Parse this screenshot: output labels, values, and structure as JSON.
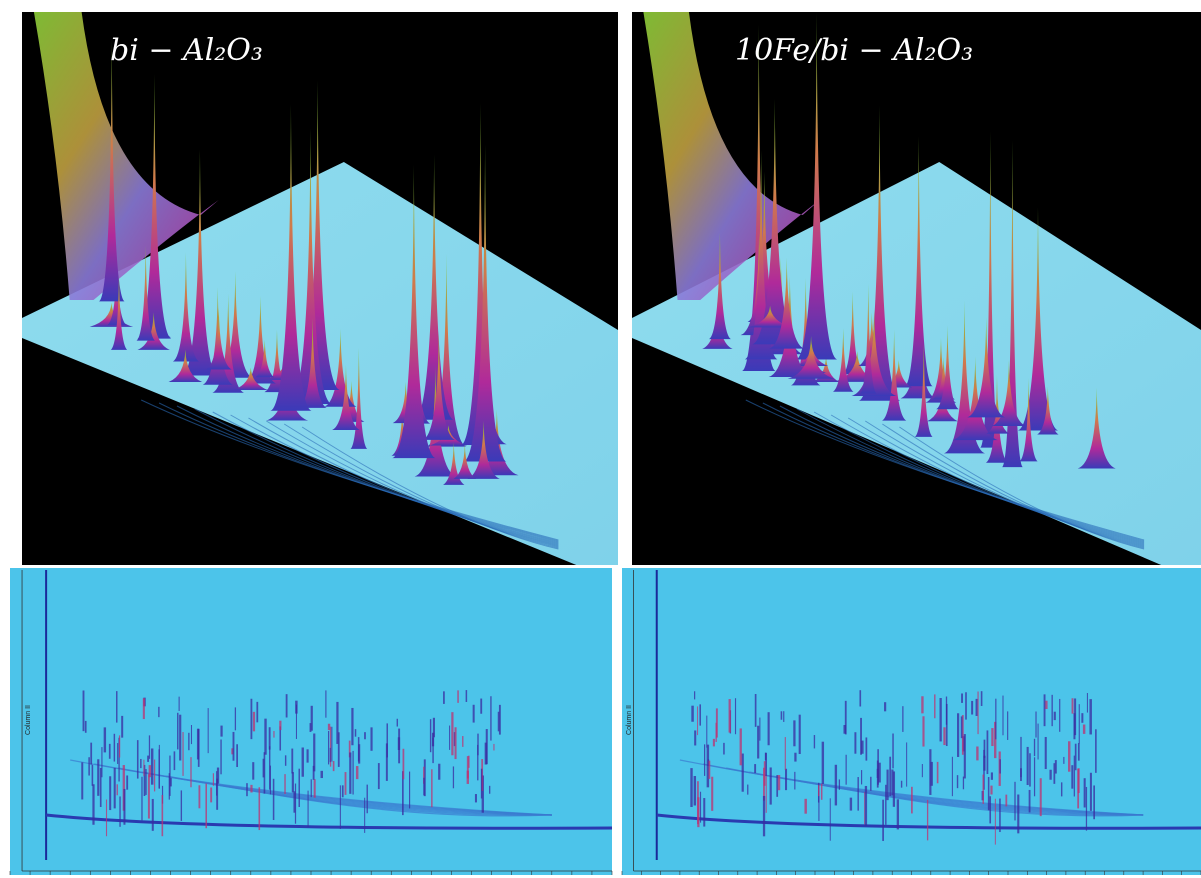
{
  "panels": [
    {
      "label": "bi − Al₂O₃"
    },
    {
      "label": "10Fe/bi − Al₂O₃"
    }
  ],
  "contour_axis_label": "Column II"
}
